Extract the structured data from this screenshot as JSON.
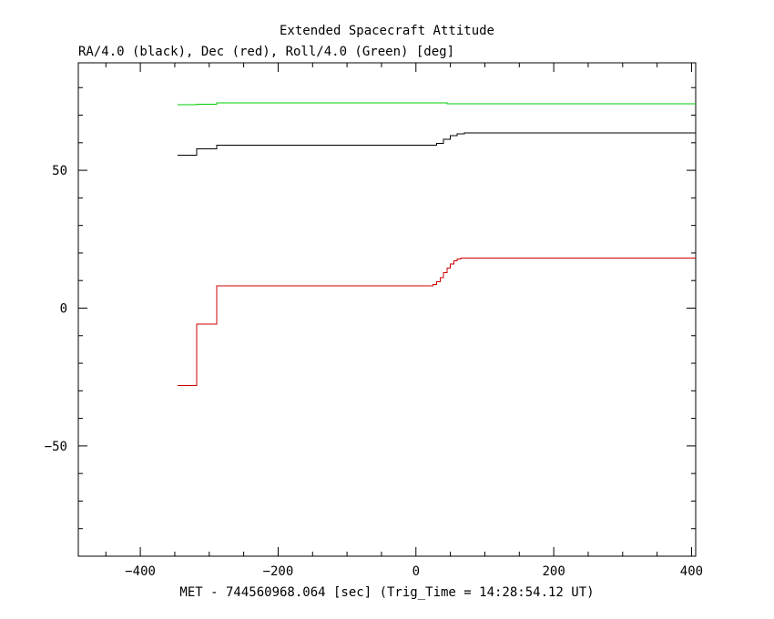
{
  "chart_data": {
    "type": "line",
    "title": "Extended Spacecraft Attitude",
    "subtitle": "RA/4.0 (black), Dec (red), Roll/4.0 (Green) [deg]",
    "xlabel": "MET - 744560968.064 [sec] (Trig_Time = 14:28:54.12 UT)",
    "ylabel": "",
    "xlim": [
      -490,
      406
    ],
    "ylim": [
      -90,
      89
    ],
    "xticks": [
      -400,
      -200,
      0,
      200,
      400
    ],
    "yticks": [
      -50,
      0,
      50
    ],
    "xtick_labels": [
      "−400",
      "−200",
      "0",
      "200",
      "400"
    ],
    "ytick_labels": [
      "−50",
      "0",
      "50"
    ],
    "grid": false,
    "series": [
      {
        "color": "#00cc00",
        "step": true,
        "points": [
          [
            -346,
            73.8
          ],
          [
            -318,
            74.0
          ],
          [
            -289,
            74.4
          ],
          [
            40,
            74.4
          ],
          [
            45,
            74.2
          ],
          [
            406,
            74.2
          ]
        ]
      },
      {
        "color": "#000000",
        "step": true,
        "points": [
          [
            -346,
            55.5
          ],
          [
            -318,
            57.8
          ],
          [
            -289,
            59.1
          ],
          [
            20,
            59.1
          ],
          [
            30,
            59.8
          ],
          [
            40,
            61.2
          ],
          [
            50,
            62.5
          ],
          [
            60,
            63.3
          ],
          [
            70,
            63.5
          ],
          [
            406,
            63.5
          ]
        ]
      },
      {
        "color": "#cc0000",
        "step": true,
        "points": [
          [
            -346,
            -28.1
          ],
          [
            -318,
            -5.8
          ],
          [
            -289,
            8.1
          ],
          [
            20,
            8.1
          ],
          [
            25,
            8.6
          ],
          [
            30,
            9.6
          ],
          [
            35,
            11.0
          ],
          [
            40,
            12.8
          ],
          [
            45,
            14.5
          ],
          [
            50,
            16.0
          ],
          [
            55,
            17.2
          ],
          [
            60,
            17.9
          ],
          [
            65,
            18.2
          ],
          [
            406,
            18.2
          ]
        ]
      }
    ]
  }
}
